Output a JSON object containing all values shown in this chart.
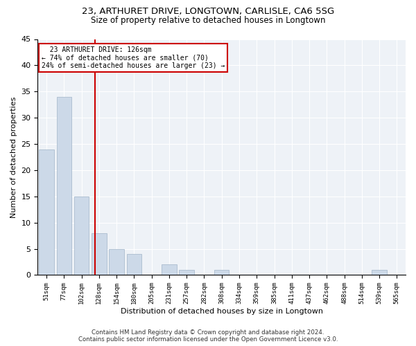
{
  "title1": "23, ARTHURET DRIVE, LONGTOWN, CARLISLE, CA6 5SG",
  "title2": "Size of property relative to detached houses in Longtown",
  "xlabel": "Distribution of detached houses by size in Longtown",
  "ylabel": "Number of detached properties",
  "bar_labels": [
    "51sqm",
    "77sqm",
    "102sqm",
    "128sqm",
    "154sqm",
    "180sqm",
    "205sqm",
    "231sqm",
    "257sqm",
    "282sqm",
    "308sqm",
    "334sqm",
    "359sqm",
    "385sqm",
    "411sqm",
    "437sqm",
    "462sqm",
    "488sqm",
    "514sqm",
    "539sqm",
    "565sqm"
  ],
  "bar_values": [
    24,
    34,
    15,
    8,
    5,
    4,
    0,
    2,
    1,
    0,
    1,
    0,
    0,
    0,
    0,
    0,
    0,
    0,
    0,
    1,
    0
  ],
  "bar_color": "#ccd9e8",
  "bar_edgecolor": "#aabcce",
  "property_label": "23 ARTHURET DRIVE: 126sqm",
  "pct_smaller": "74% of detached houses are smaller (70)",
  "pct_larger": "24% of semi-detached houses are larger (23)",
  "vline_color": "#cc0000",
  "footer1": "Contains HM Land Registry data © Crown copyright and database right 2024.",
  "footer2": "Contains public sector information licensed under the Open Government Licence v3.0.",
  "ylim": [
    0,
    45
  ],
  "yticks": [
    0,
    5,
    10,
    15,
    20,
    25,
    30,
    35,
    40,
    45
  ],
  "plot_bg_color": "#eef2f7"
}
